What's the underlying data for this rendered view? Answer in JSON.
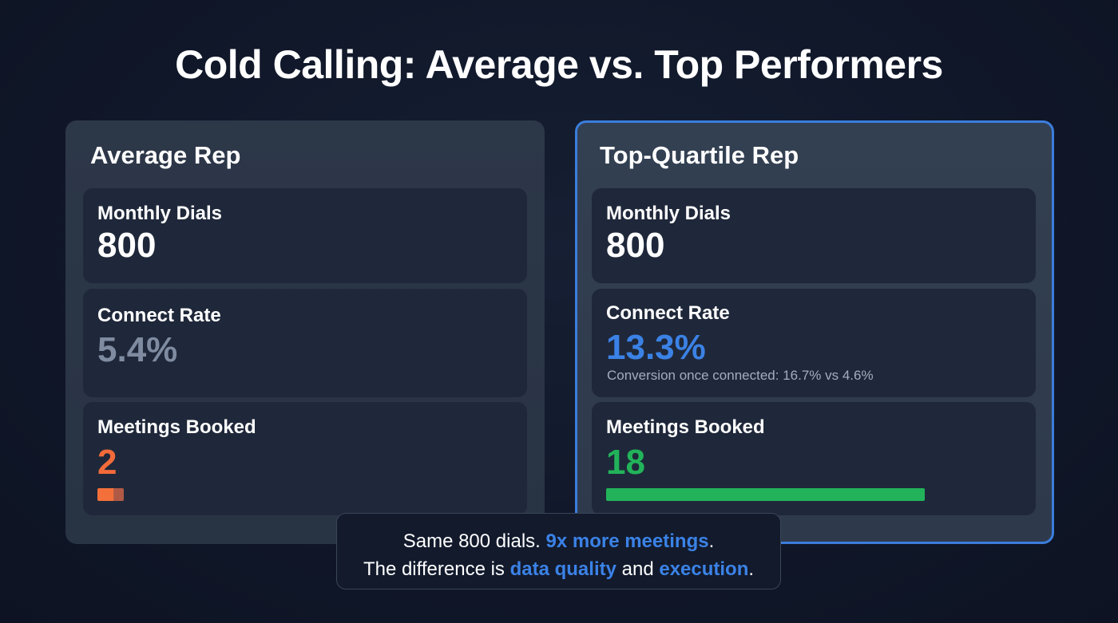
{
  "title": "Cold Calling: Average vs. Top Performers",
  "panels": {
    "average": {
      "title": "Average Rep",
      "metrics": {
        "dials": {
          "label": "Monthly Dials",
          "value": "800"
        },
        "connect": {
          "label": "Connect Rate",
          "value": "5.4%"
        },
        "meetings": {
          "label": "Meetings Booked",
          "value": "2",
          "bar_color": "#f26b3a"
        }
      }
    },
    "top": {
      "title": "Top-Quartile Rep",
      "metrics": {
        "dials": {
          "label": "Monthly Dials",
          "value": "800"
        },
        "connect": {
          "label": "Connect Rate",
          "value": "13.3%",
          "note": "Conversion once connected: 16.7% vs 4.6%"
        },
        "meetings": {
          "label": "Meetings Booked",
          "value": "18",
          "bar_color": "#22b35a"
        }
      },
      "border_color": "#3b7ddd"
    }
  },
  "callout": {
    "line1_pre": "Same 800 dials. ",
    "line1_hl": "9x more meetings",
    "line1_post": ".",
    "line2_pre": "The difference is ",
    "line2_hl1": "data quality",
    "line2_mid": " and ",
    "line2_hl2": "execution",
    "line2_post": "."
  },
  "colors": {
    "accent_blue": "#3b82e6",
    "orange": "#f26b3a",
    "green": "#22b35a",
    "muted_gray": "#7f8ba0"
  }
}
